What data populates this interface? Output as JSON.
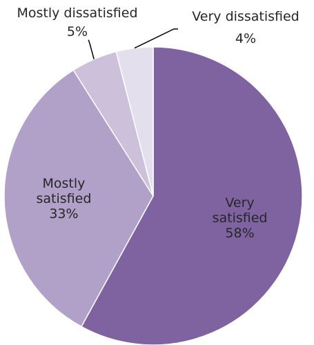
{
  "chart_data": {
    "type": "pie",
    "title": "",
    "start_angle_deg": 0,
    "direction": "clockwise",
    "slices": [
      {
        "name": "Very satisfied",
        "value": 58,
        "label_lines": [
          "Very",
          "satisfied"
        ],
        "pct": "58%",
        "color": "#7f63a1",
        "label_placement": "inside"
      },
      {
        "name": "Mostly satisfied",
        "value": 33,
        "label_lines": [
          "Mostly",
          "satisfied"
        ],
        "pct": "33%",
        "color": "#b1a0c7",
        "label_placement": "inside"
      },
      {
        "name": "Mostly dissatisfied",
        "value": 5,
        "label_lines": [
          "Mostly dissatisfied"
        ],
        "pct": "5%",
        "color": "#ccc0da",
        "label_placement": "outside-left"
      },
      {
        "name": "Very dissatisfied",
        "value": 4,
        "label_lines": [
          "Very dissatisfied"
        ],
        "pct": "4%",
        "color": "#e4dfec",
        "label_placement": "outside-right"
      }
    ]
  }
}
